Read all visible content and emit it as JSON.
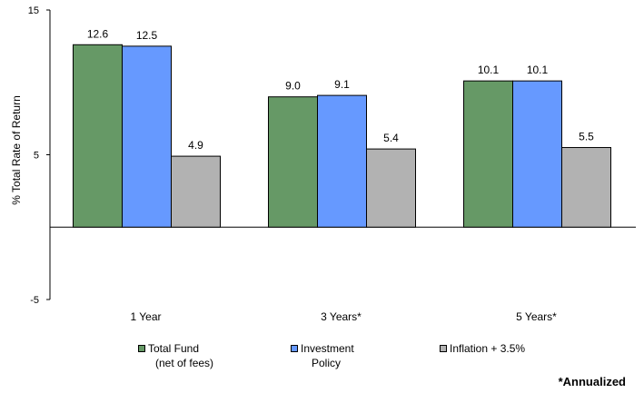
{
  "chart_data": {
    "type": "bar",
    "title": "",
    "xlabel": "",
    "ylabel": "% Total Rate of Return",
    "ylim": [
      -5,
      15
    ],
    "yticks": [
      "15",
      "5",
      "-5"
    ],
    "grid": false,
    "legend_position": "bottom",
    "categories": [
      "1 Year",
      "3 Years*",
      "5 Years*"
    ],
    "series": [
      {
        "name": "Total Fund (net of fees)",
        "legend_lines": [
          "Total Fund",
          "(net of fees)"
        ],
        "color": "#669966",
        "values": [
          12.6,
          9.0,
          10.1
        ],
        "labels": [
          "12.6",
          "9.0",
          "10.1"
        ]
      },
      {
        "name": "Investment Policy",
        "legend_lines": [
          "Investment",
          "Policy"
        ],
        "color": "#6699ff",
        "values": [
          12.5,
          9.1,
          10.1
        ],
        "labels": [
          "12.5",
          "9.1",
          "10.1"
        ]
      },
      {
        "name": "Inflation + 3.5%",
        "legend_lines": [
          "Inflation + 3.5%"
        ],
        "color": "#b2b2b2",
        "values": [
          4.9,
          5.4,
          5.5
        ],
        "labels": [
          "4.9",
          "5.4",
          "5.5"
        ]
      }
    ]
  },
  "footnote": "*Annualized"
}
